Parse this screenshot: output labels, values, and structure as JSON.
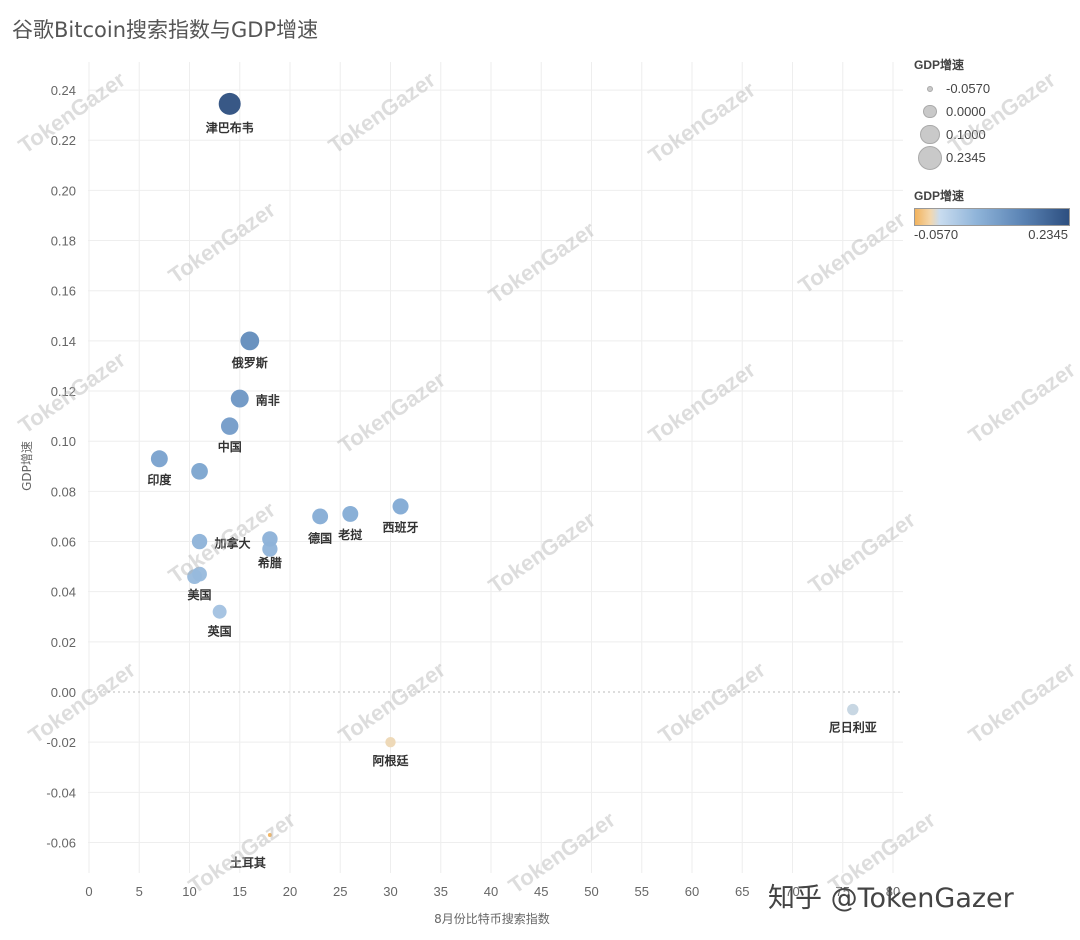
{
  "title": "谷歌Bitcoin搜索指数与GDP增速",
  "credit": "知乎 @TokenGazer",
  "watermark": "TokenGazer",
  "legend": {
    "size_title": "GDP增速",
    "size_entries": [
      "-0.0570",
      "0.0000",
      "0.1000",
      "0.2345"
    ],
    "color_title": "GDP增速",
    "color_min": "-0.0570",
    "color_max": "0.2345",
    "colors": {
      "negative": "#f2b35e",
      "positive": "#2d4f80"
    }
  },
  "chart_data": {
    "type": "scatter",
    "title": "谷歌Bitcoin搜索指数与GDP增速",
    "xlabel": "8月份比特币搜索指数",
    "ylabel": "GDP增速",
    "xlim": [
      0,
      80
    ],
    "ylim": [
      -0.07,
      0.24
    ],
    "x_ticks": [
      "0",
      "5",
      "10",
      "15",
      "20",
      "25",
      "30",
      "35",
      "40",
      "45",
      "50",
      "55",
      "60",
      "65",
      "70",
      "75",
      "80"
    ],
    "y_ticks": [
      "0.24",
      "0.22",
      "0.20",
      "0.18",
      "0.16",
      "0.14",
      "0.12",
      "0.10",
      "0.08",
      "0.06",
      "0.04",
      "0.02",
      "0.00",
      "-0.02",
      "-0.04",
      "-0.06"
    ],
    "grid": true,
    "legend_position": "right",
    "points": [
      {
        "label": "津巴布韦",
        "x": 14,
        "y": 0.2345
      },
      {
        "label": "俄罗斯",
        "x": 16,
        "y": 0.14
      },
      {
        "label": "南非",
        "x": 15,
        "y": 0.117
      },
      {
        "label": "中国",
        "x": 14,
        "y": 0.106
      },
      {
        "label": "印度",
        "x": 7,
        "y": 0.093
      },
      {
        "label": "",
        "x": 11,
        "y": 0.088
      },
      {
        "label": "西班牙",
        "x": 31,
        "y": 0.074
      },
      {
        "label": "老挝",
        "x": 26,
        "y": 0.071
      },
      {
        "label": "德国",
        "x": 23,
        "y": 0.07
      },
      {
        "label": "加拿大",
        "x": 11,
        "y": 0.06
      },
      {
        "label": "",
        "x": 18,
        "y": 0.061
      },
      {
        "label": "希腊",
        "x": 18,
        "y": 0.057
      },
      {
        "label": "美国",
        "x": 11,
        "y": 0.047
      },
      {
        "label": "",
        "x": 10.5,
        "y": 0.046
      },
      {
        "label": "英国",
        "x": 13,
        "y": 0.032
      },
      {
        "label": "尼日利亚",
        "x": 76,
        "y": -0.007
      },
      {
        "label": "阿根廷",
        "x": 30,
        "y": -0.02
      },
      {
        "label": "土耳其",
        "x": 18,
        "y": -0.057
      }
    ]
  }
}
